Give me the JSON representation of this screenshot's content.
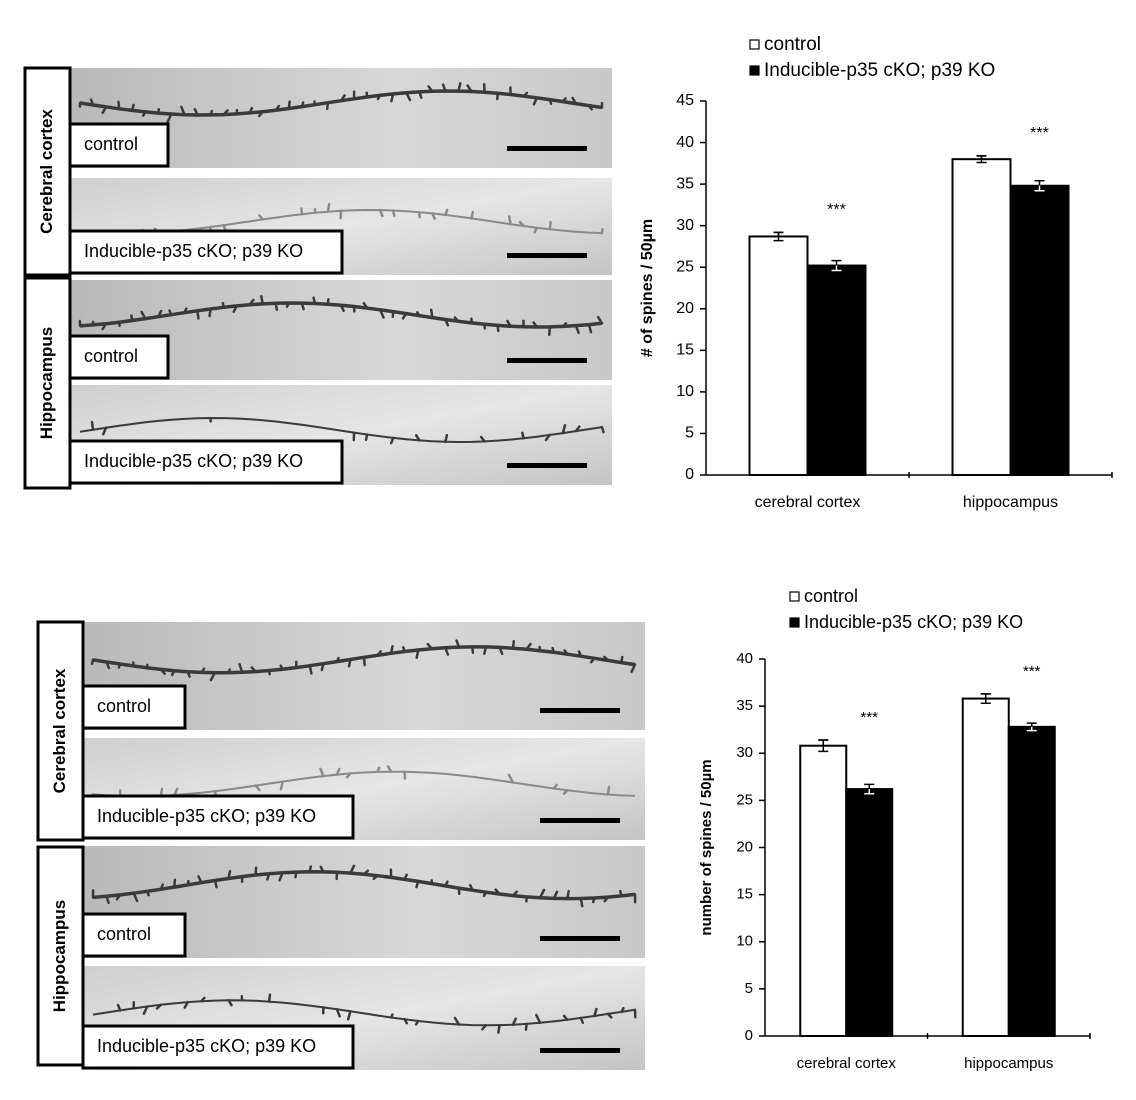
{
  "chart_data": [
    {
      "type": "bar",
      "ylabel": "# of spines / 50µm",
      "categories": [
        "cerebral cortex",
        "hippocampus"
      ],
      "series": [
        {
          "name": "control",
          "color": "#ffffff",
          "values": [
            28.7,
            38.0
          ],
          "errors": [
            0.5,
            0.4
          ]
        },
        {
          "name": "Inducible-p35 cKO; p39 KO",
          "color": "#000000",
          "values": [
            25.2,
            34.8
          ],
          "errors": [
            0.6,
            0.6
          ]
        }
      ],
      "significance": [
        "***",
        "***"
      ],
      "ylim": [
        0,
        45
      ],
      "yticks": [
        0,
        5,
        10,
        15,
        20,
        25,
        30,
        35,
        40,
        45
      ]
    },
    {
      "type": "bar",
      "ylabel": "number of spines / 50µm",
      "categories": [
        "cerebral cortex",
        "hippocampus"
      ],
      "series": [
        {
          "name": "control",
          "color": "#ffffff",
          "values": [
            30.8,
            35.8
          ],
          "errors": [
            0.6,
            0.5
          ]
        },
        {
          "name": "Inducible-p35 cKO; p39 KO",
          "color": "#000000",
          "values": [
            26.2,
            32.8
          ],
          "errors": [
            0.5,
            0.4
          ]
        }
      ],
      "significance": [
        "***",
        "***"
      ],
      "ylim": [
        0,
        40
      ],
      "yticks": [
        0,
        5,
        10,
        15,
        20,
        25,
        30,
        35,
        40
      ]
    }
  ],
  "micrographs": [
    {
      "regions": [
        {
          "name": "Cerebral cortex",
          "labels": [
            "control",
            "Inducible-p35 cKO; p39 KO"
          ]
        },
        {
          "name": "Hippocampus",
          "labels": [
            "control",
            "Inducible-p35 cKO; p39 KO"
          ]
        }
      ]
    },
    {
      "regions": [
        {
          "name": "Cerebral cortex",
          "labels": [
            "control",
            "Inducible-p35 cKO; p39 KO"
          ]
        },
        {
          "name": "Hippocampus",
          "labels": [
            "control",
            "Inducible-p35 cKO; p39 KO"
          ]
        }
      ]
    }
  ]
}
